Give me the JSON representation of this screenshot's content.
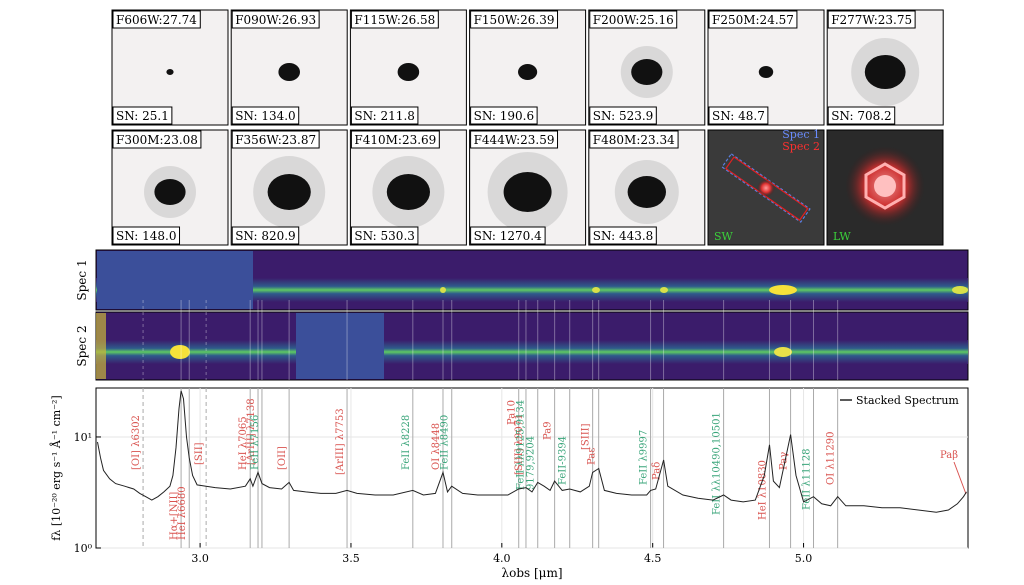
{
  "cutouts": [
    {
      "label": "F606W:27.74",
      "sn": "SN: 25.1"
    },
    {
      "label": "F090W:26.93",
      "sn": "SN: 134.0"
    },
    {
      "label": "F115W:26.58",
      "sn": "SN: 211.8"
    },
    {
      "label": "F150W:26.39",
      "sn": "SN: 190.6"
    },
    {
      "label": "F200W:25.16",
      "sn": "SN: 523.9"
    },
    {
      "label": "F250M:24.57",
      "sn": "SN: 48.7"
    },
    {
      "label": "F277W:23.75",
      "sn": "SN: 708.2"
    },
    {
      "label": "F300M:23.08",
      "sn": "SN: 148.0"
    },
    {
      "label": "F356W:23.87",
      "sn": "SN: 820.9"
    },
    {
      "label": "F410M:23.69",
      "sn": "SN: 530.3"
    },
    {
      "label": "F444W:23.59",
      "sn": "SN: 1270.4"
    },
    {
      "label": "F480M:23.34",
      "sn": "SN: 443.8"
    }
  ],
  "sw_panel": {
    "legend": [
      "Spec 1",
      "Spec 2"
    ],
    "label": "SW"
  },
  "lw_panel": {
    "label": "LW"
  },
  "spectra_2d": [
    "Spec 1",
    "Spec 2"
  ],
  "chart_data": {
    "type": "line",
    "xlabel": "λobs [μm]",
    "ylabel": "fλ [10⁻²⁰ erg s⁻¹ Å⁻¹ cm⁻²]",
    "xlim": [
      2.655,
      5.545
    ],
    "ylim": [
      1,
      27.6
    ],
    "yscale": "log",
    "grid": true,
    "legend": "upper right",
    "xticks": [
      {
        "value": 3,
        "label": "3.0"
      },
      {
        "value": 3.5,
        "label": "3.5"
      },
      {
        "value": 4,
        "label": "4.0"
      },
      {
        "value": 4.5,
        "label": "4.5"
      },
      {
        "value": 5,
        "label": "5.0"
      }
    ],
    "yticks": [
      {
        "value": 1,
        "label": "10⁰"
      },
      {
        "value": 10,
        "label": "10¹"
      }
    ],
    "x": [
      2.66,
      2.67,
      2.68,
      2.7,
      2.72,
      2.75,
      2.78,
      2.8,
      2.82,
      2.84,
      2.86,
      2.88,
      2.9,
      2.91,
      2.92,
      2.93,
      2.937,
      2.945,
      2.955,
      2.964,
      2.975,
      2.99,
      3.02,
      3.05,
      3.1,
      3.15,
      3.166,
      3.175,
      3.192,
      3.205,
      3.23,
      3.27,
      3.295,
      3.31,
      3.35,
      3.4,
      3.45,
      3.487,
      3.52,
      3.58,
      3.64,
      3.705,
      3.74,
      3.78,
      3.805,
      3.82,
      3.834,
      3.87,
      3.92,
      3.97,
      4.02,
      4.056,
      4.08,
      4.1,
      4.119,
      4.14,
      4.16,
      4.175,
      4.2,
      4.225,
      4.26,
      4.29,
      4.301,
      4.321,
      4.34,
      4.38,
      4.43,
      4.48,
      4.493,
      4.51,
      4.536,
      4.55,
      4.6,
      4.65,
      4.7,
      4.735,
      4.76,
      4.8,
      4.84,
      4.87,
      4.887,
      4.9,
      4.92,
      4.957,
      4.975,
      5.0,
      5.033,
      5.06,
      5.09,
      5.113,
      5.14,
      5.2,
      5.26,
      5.32,
      5.38,
      5.44,
      5.48,
      5.51,
      5.53,
      5.54
    ],
    "series": [
      {
        "name": "Stacked Spectrum",
        "color": "#222222",
        "values": [
          9.0,
          6.5,
          5.0,
          4.2,
          3.8,
          3.6,
          3.4,
          3.1,
          2.9,
          2.7,
          2.9,
          3.2,
          3.6,
          4.5,
          8,
          18,
          26,
          22,
          10,
          6.5,
          4.5,
          3.7,
          3.6,
          3.5,
          3.4,
          3.6,
          4.2,
          3.6,
          4.8,
          3.8,
          3.5,
          3.4,
          3.9,
          3.3,
          3.2,
          3.1,
          3.1,
          3.3,
          3.1,
          3.0,
          3.0,
          3.3,
          3.0,
          3.1,
          4.8,
          3.2,
          3.6,
          3.1,
          3.0,
          3.0,
          3.0,
          3.4,
          3.5,
          3.2,
          3.9,
          3.6,
          3.3,
          4.0,
          3.3,
          3.4,
          3.2,
          3.6,
          4.8,
          5.2,
          3.3,
          3.1,
          3.0,
          3.0,
          3.3,
          3.4,
          6.2,
          3.6,
          3.0,
          2.8,
          2.7,
          3.0,
          2.7,
          2.6,
          2.7,
          4.5,
          8.5,
          4.0,
          3.5,
          10.5,
          4.5,
          2.6,
          2.9,
          2.5,
          2.4,
          2.9,
          2.4,
          2.4,
          2.3,
          2.3,
          2.2,
          2.1,
          2.2,
          2.5,
          2.9,
          3.2
        ]
      }
    ],
    "annotations": [
      {
        "label": [
          "[OI] λ6302"
        ],
        "x": 2.811,
        "color": "#d9534f",
        "linestyle": "dashed"
      },
      {
        "label": [
          "Hα+[NII]"
        ],
        "x": 2.937,
        "color": "#d9534f"
      },
      {
        "label": [
          "HeI λ6680"
        ],
        "x": 2.964,
        "color": "#d9534f"
      },
      {
        "label": [
          "[SII]"
        ],
        "x": 3.02,
        "color": "#d9534f",
        "linestyle": "dashed"
      },
      {
        "label": [
          "HeI λ7065"
        ],
        "x": 3.166,
        "color": "#d9534f"
      },
      {
        "label": [
          "[ArIII] λ7138"
        ],
        "x": 3.192,
        "color": "#d9534f"
      },
      {
        "label": [
          "FeII λ7156"
        ],
        "x": 3.205,
        "color": "#3aa57a"
      },
      {
        "label": [
          "[OII]"
        ],
        "x": 3.295,
        "color": "#d9534f"
      },
      {
        "label": [
          "[ArIII] λ7753"
        ],
        "x": 3.487,
        "color": "#d9534f"
      },
      {
        "label": [
          "FeII λ8228"
        ],
        "x": 3.705,
        "color": "#3aa57a"
      },
      {
        "label": [
          "OI λ8448"
        ],
        "x": 3.805,
        "color": "#d9534f"
      },
      {
        "label": [
          "FeII λ8490"
        ],
        "x": 3.834,
        "color": "#3aa57a"
      },
      {
        "label": [
          "Pa10"
        ],
        "x": 4.056,
        "color": "#d9534f"
      },
      {
        "label": [
          "[SIII] λ9071"
        ],
        "x": 4.08,
        "color": "#d9534f"
      },
      {
        "label": [
          "FeII λλ9125,9134",
          "9179,9204"
        ],
        "x": 4.119,
        "color": "#3aa57a"
      },
      {
        "label": [
          "Pa9"
        ],
        "x": 4.175,
        "color": "#d9534f"
      },
      {
        "label": [
          "FeII-9394"
        ],
        "x": 4.225,
        "color": "#3aa57a"
      },
      {
        "label": [
          "[SIII]"
        ],
        "x": 4.301,
        "color": "#d9534f"
      },
      {
        "label": [
          "Paε"
        ],
        "x": 4.321,
        "color": "#d9534f"
      },
      {
        "label": [
          "FeII λ9997"
        ],
        "x": 4.493,
        "color": "#3aa57a"
      },
      {
        "label": [
          "Paδ"
        ],
        "x": 4.536,
        "color": "#d9534f"
      },
      {
        "label": [
          "FeII λλ10490,10501"
        ],
        "x": 4.735,
        "color": "#3aa57a"
      },
      {
        "label": [
          "HeI λ10830"
        ],
        "x": 4.887,
        "color": "#d9534f"
      },
      {
        "label": [
          "Paγ"
        ],
        "x": 4.957,
        "color": "#d9534f"
      },
      {
        "label": [
          "FeII λ11128"
        ],
        "x": 5.033,
        "color": "#3aa57a"
      },
      {
        "label": [
          "OI λ11290"
        ],
        "x": 5.113,
        "color": "#d9534f"
      },
      {
        "label": [
          "Paβ"
        ],
        "color": "#d9534f"
      }
    ]
  }
}
